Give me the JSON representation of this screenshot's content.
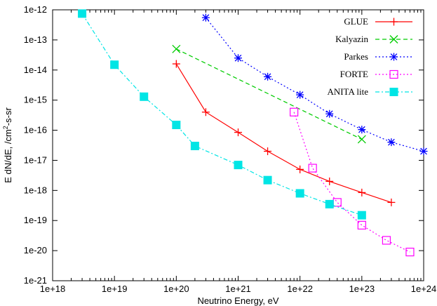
{
  "chart_data": {
    "type": "line",
    "xlabel": "Neutrino Energy, eV",
    "ylabel_main": "E dN/dE, /cm",
    "ylabel_sup": "2",
    "ylabel_tail": "-s-sr",
    "x_scale": "log",
    "y_scale": "log",
    "xlim": [
      1e+18,
      1e+24
    ],
    "ylim": [
      1e-21,
      1e-12
    ],
    "x_ticks": [
      {
        "value": 1e+18,
        "label": "1e+18"
      },
      {
        "value": 1e+19,
        "label": "1e+19"
      },
      {
        "value": 1e+20,
        "label": "1e+20"
      },
      {
        "value": 1e+21,
        "label": "1e+21"
      },
      {
        "value": 1e+22,
        "label": "1e+22"
      },
      {
        "value": 1e+23,
        "label": "1e+23"
      },
      {
        "value": 1e+24,
        "label": "1e+24"
      }
    ],
    "y_ticks": [
      {
        "value": 1e-12,
        "label": "1e-12"
      },
      {
        "value": 1e-13,
        "label": "1e-13"
      },
      {
        "value": 1e-14,
        "label": "1e-14"
      },
      {
        "value": 1e-15,
        "label": "1e-15"
      },
      {
        "value": 1e-16,
        "label": "1e-16"
      },
      {
        "value": 1e-17,
        "label": "1e-17"
      },
      {
        "value": 1e-18,
        "label": "1e-18"
      },
      {
        "value": 1e-19,
        "label": "1e-19"
      },
      {
        "value": 1e-20,
        "label": "1e-20"
      },
      {
        "value": 1e-21,
        "label": "1e-21"
      }
    ],
    "grid": false,
    "legend_position": "top-right",
    "series": [
      {
        "name": "GLUE",
        "color": "#ff0000",
        "marker": "plus",
        "dash": "solid",
        "points": [
          [
            1e+20,
            1.6e-14
          ],
          [
            3e+20,
            4e-16
          ],
          [
            1e+21,
            8.5e-17
          ],
          [
            3e+21,
            2e-17
          ],
          [
            1e+22,
            5e-18
          ],
          [
            3e+22,
            2e-18
          ],
          [
            1e+23,
            8.5e-19
          ],
          [
            3e+23,
            4e-19
          ]
        ]
      },
      {
        "name": "Kalyazin",
        "color": "#00cc00",
        "marker": "x",
        "dash": "dashed",
        "points": [
          [
            1e+20,
            5e-14
          ],
          [
            1e+23,
            5e-17
          ]
        ]
      },
      {
        "name": "Parkes",
        "color": "#0000ff",
        "marker": "star",
        "dash": "dotted",
        "points": [
          [
            3e+20,
            5.5e-13
          ],
          [
            1e+21,
            2.5e-14
          ],
          [
            3e+21,
            6e-15
          ],
          [
            1e+22,
            1.5e-15
          ],
          [
            3e+22,
            3.5e-16
          ],
          [
            1e+23,
            1.05e-16
          ],
          [
            3e+23,
            4e-17
          ],
          [
            1e+24,
            2e-17
          ]
        ]
      },
      {
        "name": "FORTE",
        "color": "#ff00ff",
        "marker": "square-open",
        "dash": "dotted",
        "points": [
          [
            8e+21,
            4e-16
          ],
          [
            1.6e+22,
            5.5e-18
          ],
          [
            4e+22,
            4e-19
          ],
          [
            1e+23,
            7e-20
          ],
          [
            2.5e+23,
            2.2e-20
          ],
          [
            6e+23,
            9e-21
          ]
        ]
      },
      {
        "name": "ANITA lite",
        "color": "#00e5e5",
        "marker": "square-filled",
        "dash": "dashdot",
        "points": [
          [
            3e+18,
            7.5e-13
          ],
          [
            1e+19,
            1.5e-14
          ],
          [
            3e+19,
            1.3e-15
          ],
          [
            1e+20,
            1.5e-16
          ],
          [
            2e+20,
            3e-17
          ],
          [
            1e+21,
            7e-18
          ],
          [
            3e+21,
            2.2e-18
          ],
          [
            1e+22,
            8e-19
          ],
          [
            3e+22,
            3.5e-19
          ],
          [
            1e+23,
            1.5e-19
          ]
        ]
      }
    ]
  }
}
